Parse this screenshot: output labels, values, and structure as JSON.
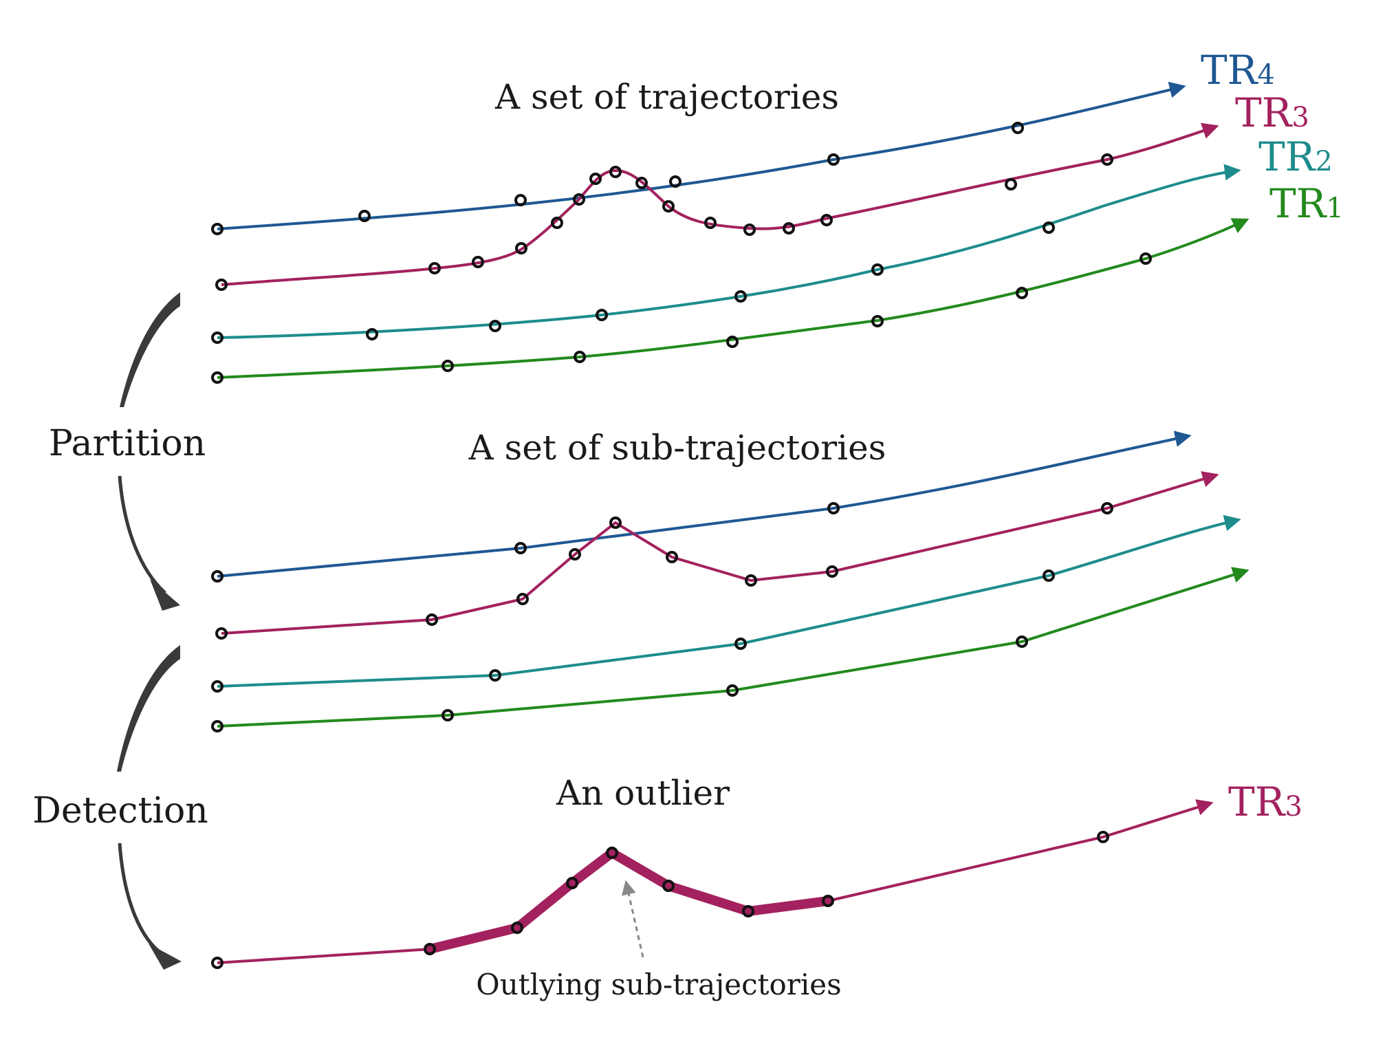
{
  "colors": {
    "TR1": "#238a1e",
    "TR2": "#1e8c8c",
    "TR3": "#a3215e",
    "TR4": "#1f5893",
    "text": "#1a1a1a",
    "arrow": "#3a3a3a"
  },
  "panels": {
    "set": {
      "title": "A set of trajectories"
    },
    "sub": {
      "title": "A set of sub-trajectories"
    },
    "outlier": {
      "title": "An outlier"
    }
  },
  "steps": {
    "partition": "Partition",
    "detection": "Detection"
  },
  "annotation": {
    "outlying": "Outlying sub-trajectories"
  },
  "trajectory_labels": [
    {
      "id": "tr4",
      "main": "TR",
      "sub": "4",
      "color_key": "TR4"
    },
    {
      "id": "tr3",
      "main": "TR",
      "sub": "3",
      "color_key": "TR3"
    },
    {
      "id": "tr2",
      "main": "TR",
      "sub": "2",
      "color_key": "TR2"
    },
    {
      "id": "tr1",
      "main": "TR",
      "sub": "1",
      "color_key": "TR1"
    }
  ],
  "outlier_label": {
    "main": "TR",
    "sub": "3",
    "color_key": "TR3"
  }
}
